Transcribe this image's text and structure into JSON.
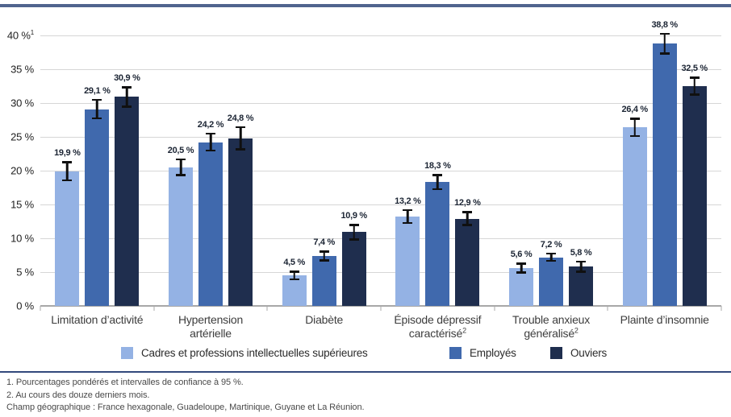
{
  "chart_data": {
    "type": "bar",
    "title": "",
    "xlabel": "",
    "ylabel": "",
    "ylim": [
      0,
      40
    ],
    "grid": true,
    "error_bars": true,
    "legend_position": "bottom",
    "yticks": [
      {
        "v": 0,
        "label": "0 %"
      },
      {
        "v": 5,
        "label": "5 %"
      },
      {
        "v": 10,
        "label": "10 %"
      },
      {
        "v": 15,
        "label": "15 %"
      },
      {
        "v": 20,
        "label": "20 %"
      },
      {
        "v": 25,
        "label": "25 %"
      },
      {
        "v": 30,
        "label": "30 %"
      },
      {
        "v": 35,
        "label": "35 %"
      },
      {
        "v": 40,
        "label": "40 %",
        "sup": "1"
      }
    ],
    "categories": [
      {
        "label": "Limitation d’activité"
      },
      {
        "label": "Hypertension\nartérielle"
      },
      {
        "label": "Diabète"
      },
      {
        "label": "Épisode dépressif\ncaractérisé",
        "sup": "2"
      },
      {
        "label": "Trouble anxieux\ngénéralisé",
        "sup": "2"
      },
      {
        "label": "Plainte d’insomnie"
      }
    ],
    "series": [
      {
        "name": "Cadres et professions intellectuelles supérieures",
        "color": "#94b2e4",
        "values": [
          19.9,
          20.5,
          4.5,
          13.2,
          5.6,
          26.4
        ],
        "labels": [
          "19,9 %",
          "20,5 %",
          "4,5 %",
          "13,2 %",
          "5,6 %",
          "26,4 %"
        ],
        "ci": [
          1.5,
          1.3,
          0.7,
          1.1,
          0.8,
          1.4
        ]
      },
      {
        "name": "Employés",
        "color": "#4069ad",
        "values": [
          29.1,
          24.2,
          7.4,
          18.3,
          7.2,
          38.8
        ],
        "labels": [
          "29,1 %",
          "24,2 %",
          "7,4 %",
          "18,3 %",
          "7,2 %",
          "38,8 %"
        ],
        "ci": [
          1.5,
          1.4,
          0.8,
          1.2,
          0.7,
          1.6
        ]
      },
      {
        "name": "Ouviers",
        "color": "#1f2e4e",
        "values": [
          30.9,
          24.8,
          10.9,
          12.9,
          5.8,
          32.5
        ],
        "labels": [
          "30,9 %",
          "24,8 %",
          "10,9 %",
          "12,9 %",
          "5,8 %",
          "32,5 %"
        ],
        "ci": [
          1.6,
          1.8,
          1.2,
          1.1,
          0.9,
          1.4
        ]
      }
    ]
  },
  "footnotes": [
    "1. Pourcentages pondérés et intervalles de confiance à 95 %.",
    "2. Au cours des douze derniers mois.",
    "Champ géographique : France hexagonale, Guadeloupe, Martinique, Guyane et La Réunion."
  ]
}
